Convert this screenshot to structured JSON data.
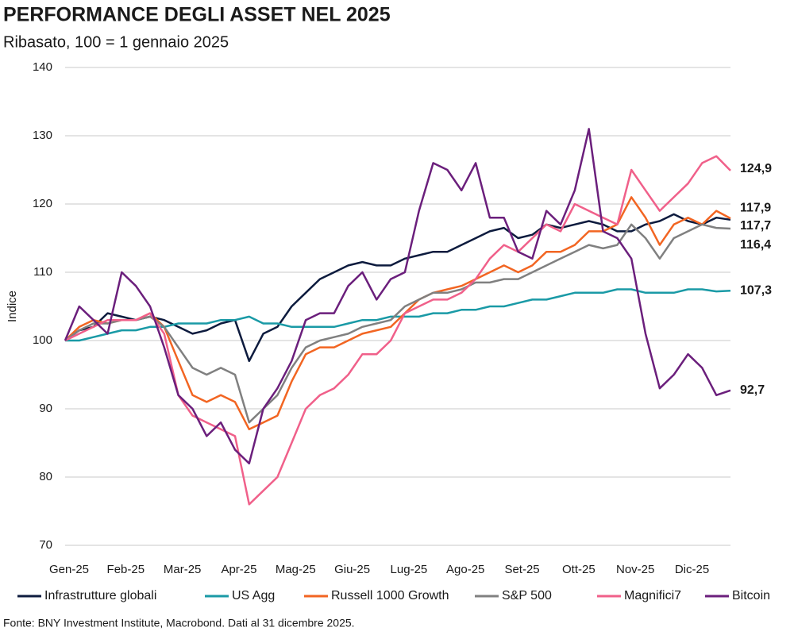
{
  "chart_data": {
    "type": "line",
    "title": "PERFORMANCE DEGLI ASSET NEL 2025",
    "subtitle": "Ribasato, 100 = 1 gennaio 2025",
    "y_label": "Indice",
    "source": "Fonte: BNY Investment Institute, Macrobond. Dati al 31 dicembre 2025.",
    "categories": [
      "Gen-25",
      null,
      null,
      null,
      "Feb-25",
      null,
      null,
      null,
      "Mar-25",
      null,
      null,
      null,
      "Apr-25",
      null,
      null,
      null,
      "Mag-25",
      null,
      null,
      null,
      "Giu-25",
      null,
      null,
      null,
      "Lug-25",
      null,
      null,
      null,
      "Ago-25",
      null,
      null,
      null,
      "Set-25",
      null,
      null,
      null,
      "Ott-25",
      null,
      null,
      null,
      "Nov-25",
      null,
      null,
      null,
      "Dic-25",
      null,
      null,
      null
    ],
    "ylim": [
      70,
      140
    ],
    "yticks": [
      70,
      80,
      90,
      100,
      110,
      120,
      130,
      140
    ],
    "grid": true,
    "legend": "bottom",
    "series": [
      {
        "name": "Infrastrutture globali",
        "color": "#0d1b3e",
        "last_value_label": "117,7",
        "values": [
          100,
          101.5,
          102,
          104,
          103.5,
          103,
          103.5,
          103,
          102,
          101,
          101.5,
          102.5,
          103,
          97,
          101,
          102,
          105,
          107,
          109,
          110,
          111,
          111.5,
          111,
          111,
          112,
          112.5,
          113,
          113,
          114,
          115,
          116,
          116.5,
          115,
          115.5,
          117,
          116.5,
          117,
          117.5,
          117,
          116,
          116,
          117,
          117.5,
          118.5,
          117.5,
          117,
          118,
          117.7
        ]
      },
      {
        "name": "US Agg",
        "color": "#1a9aa6",
        "last_value_label": "107,3",
        "values": [
          100,
          100,
          100.5,
          101,
          101.5,
          101.5,
          102,
          102,
          102.5,
          102.5,
          102.5,
          103,
          103,
          103.5,
          102.5,
          102.5,
          102,
          102,
          102,
          102,
          102.5,
          103,
          103,
          103.5,
          103.5,
          103.5,
          104,
          104,
          104.5,
          104.5,
          105,
          105,
          105.5,
          106,
          106,
          106.5,
          107,
          107,
          107,
          107.5,
          107.5,
          107,
          107,
          107,
          107.5,
          107.5,
          107.2,
          107.3
        ]
      },
      {
        "name": "Russell 1000 Growth",
        "color": "#f26522",
        "last_value_label": "117,9",
        "values": [
          100,
          102,
          103,
          102.5,
          103,
          103,
          104,
          102,
          97,
          92,
          91,
          92,
          91,
          87,
          88,
          89,
          94,
          98,
          99,
          99,
          100,
          101,
          101.5,
          102,
          104,
          106,
          107,
          107.5,
          108,
          109,
          110,
          111,
          110,
          111,
          113,
          113,
          114,
          116,
          116,
          117,
          121,
          118,
          114,
          117,
          118,
          117,
          119,
          117.9
        ]
      },
      {
        "name": "S&P 500",
        "color": "#808080",
        "last_value_label": "116,4",
        "values": [
          100,
          101.5,
          102.5,
          102.5,
          103,
          103,
          103.5,
          102,
          99,
          96,
          95,
          96,
          95,
          88,
          90,
          92,
          96,
          99,
          100,
          100.5,
          101,
          102,
          102.5,
          103,
          105,
          106,
          107,
          107,
          107.5,
          108.5,
          108.5,
          109,
          109,
          110,
          111,
          112,
          113,
          114,
          113.5,
          114,
          117,
          115,
          112,
          115,
          116,
          117,
          116.5,
          116.4
        ]
      },
      {
        "name": "Magnifici7",
        "color": "#f0608a",
        "last_value_label": "124,9",
        "values": [
          100,
          101,
          102,
          103,
          103,
          103,
          104,
          101,
          92,
          89,
          88,
          87,
          86,
          76,
          78,
          80,
          85,
          90,
          92,
          93,
          95,
          98,
          98,
          100,
          104,
          105,
          106,
          106,
          107,
          109,
          112,
          114,
          113,
          115,
          117,
          116,
          120,
          119,
          118,
          117,
          125,
          122,
          119,
          121,
          123,
          126,
          127,
          124.9
        ]
      },
      {
        "name": "Bitcoin",
        "color": "#6b1f7c",
        "last_value_label": "92,7",
        "values": [
          100,
          105,
          103,
          101,
          110,
          108,
          105,
          99,
          92,
          90,
          86,
          88,
          84,
          82,
          90,
          93,
          97,
          103,
          104,
          104,
          108,
          110,
          106,
          109,
          110,
          119,
          126,
          125,
          122,
          126,
          118,
          118,
          113,
          112,
          119,
          117,
          122,
          131,
          116,
          115,
          112,
          101,
          93,
          95,
          98,
          96,
          92,
          92.7
        ]
      }
    ]
  }
}
